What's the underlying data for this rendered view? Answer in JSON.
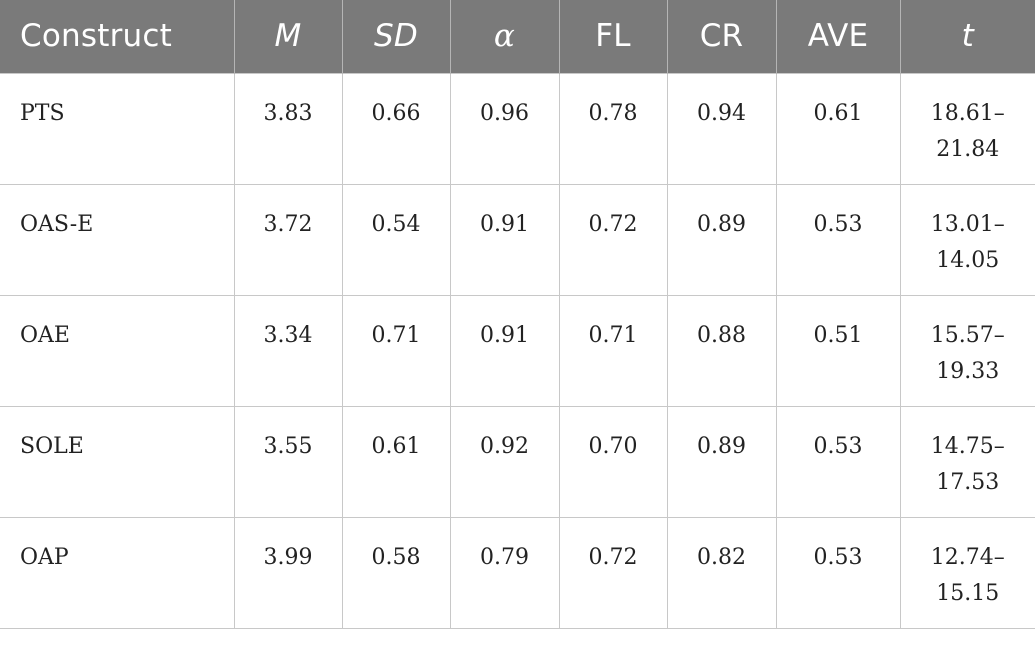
{
  "table": {
    "headers": [
      "Construct",
      "M",
      "SD",
      "α",
      "FL",
      "CR",
      "AVE",
      "t"
    ],
    "rows": [
      {
        "construct": "PTS",
        "m": "3.83",
        "sd": "0.66",
        "alpha": "0.96",
        "fl": "0.78",
        "cr": "0.94",
        "ave": "0.61",
        "t_line1": "18.61–",
        "t_line2": "21.84"
      },
      {
        "construct": "OAS-E",
        "m": "3.72",
        "sd": "0.54",
        "alpha": "0.91",
        "fl": "0.72",
        "cr": "0.89",
        "ave": "0.53",
        "t_line1": "13.01–",
        "t_line2": "14.05"
      },
      {
        "construct": "OAE",
        "m": "3.34",
        "sd": "0.71",
        "alpha": "0.91",
        "fl": "0.71",
        "cr": "0.88",
        "ave": "0.51",
        "t_line1": "15.57–",
        "t_line2": "19.33"
      },
      {
        "construct": "SOLE",
        "m": "3.55",
        "sd": "0.61",
        "alpha": "0.92",
        "fl": "0.70",
        "cr": "0.89",
        "ave": "0.53",
        "t_line1": "14.75–",
        "t_line2": "17.53"
      },
      {
        "construct": "OAP",
        "m": "3.99",
        "sd": "0.58",
        "alpha": "0.79",
        "fl": "0.72",
        "cr": "0.82",
        "ave": "0.53",
        "t_line1": "12.74–",
        "t_line2": "15.15"
      }
    ]
  },
  "colors": {
    "header_bg": "#7a7a7a",
    "header_text": "#ffffff",
    "grid": "#c8c8c8"
  }
}
